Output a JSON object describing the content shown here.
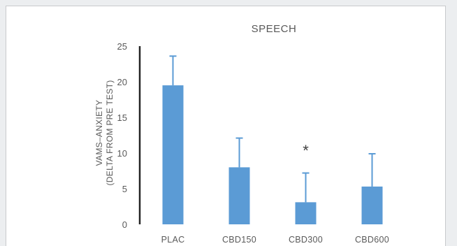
{
  "chart_data": {
    "type": "bar",
    "title": "SPEECH",
    "ylabel_line1": "VAMS–ANXIETY",
    "ylabel_line2": "(DELTA FROM PRE TEST)",
    "xlabel": "",
    "categories": [
      "PLAC",
      "CBD150",
      "CBD300",
      "CBD600"
    ],
    "values": [
      19.5,
      8.0,
      3.1,
      5.3
    ],
    "error_upper": [
      4.1,
      4.1,
      4.1,
      4.6
    ],
    "annotations": [
      "",
      "",
      "*",
      ""
    ],
    "ylim": [
      0,
      25
    ],
    "yticks": [
      "0",
      "5",
      "10",
      "15",
      "20",
      "25"
    ],
    "grid": false,
    "legend": "none",
    "bar_color": "#5b9bd5",
    "axis_color": "#262626"
  }
}
